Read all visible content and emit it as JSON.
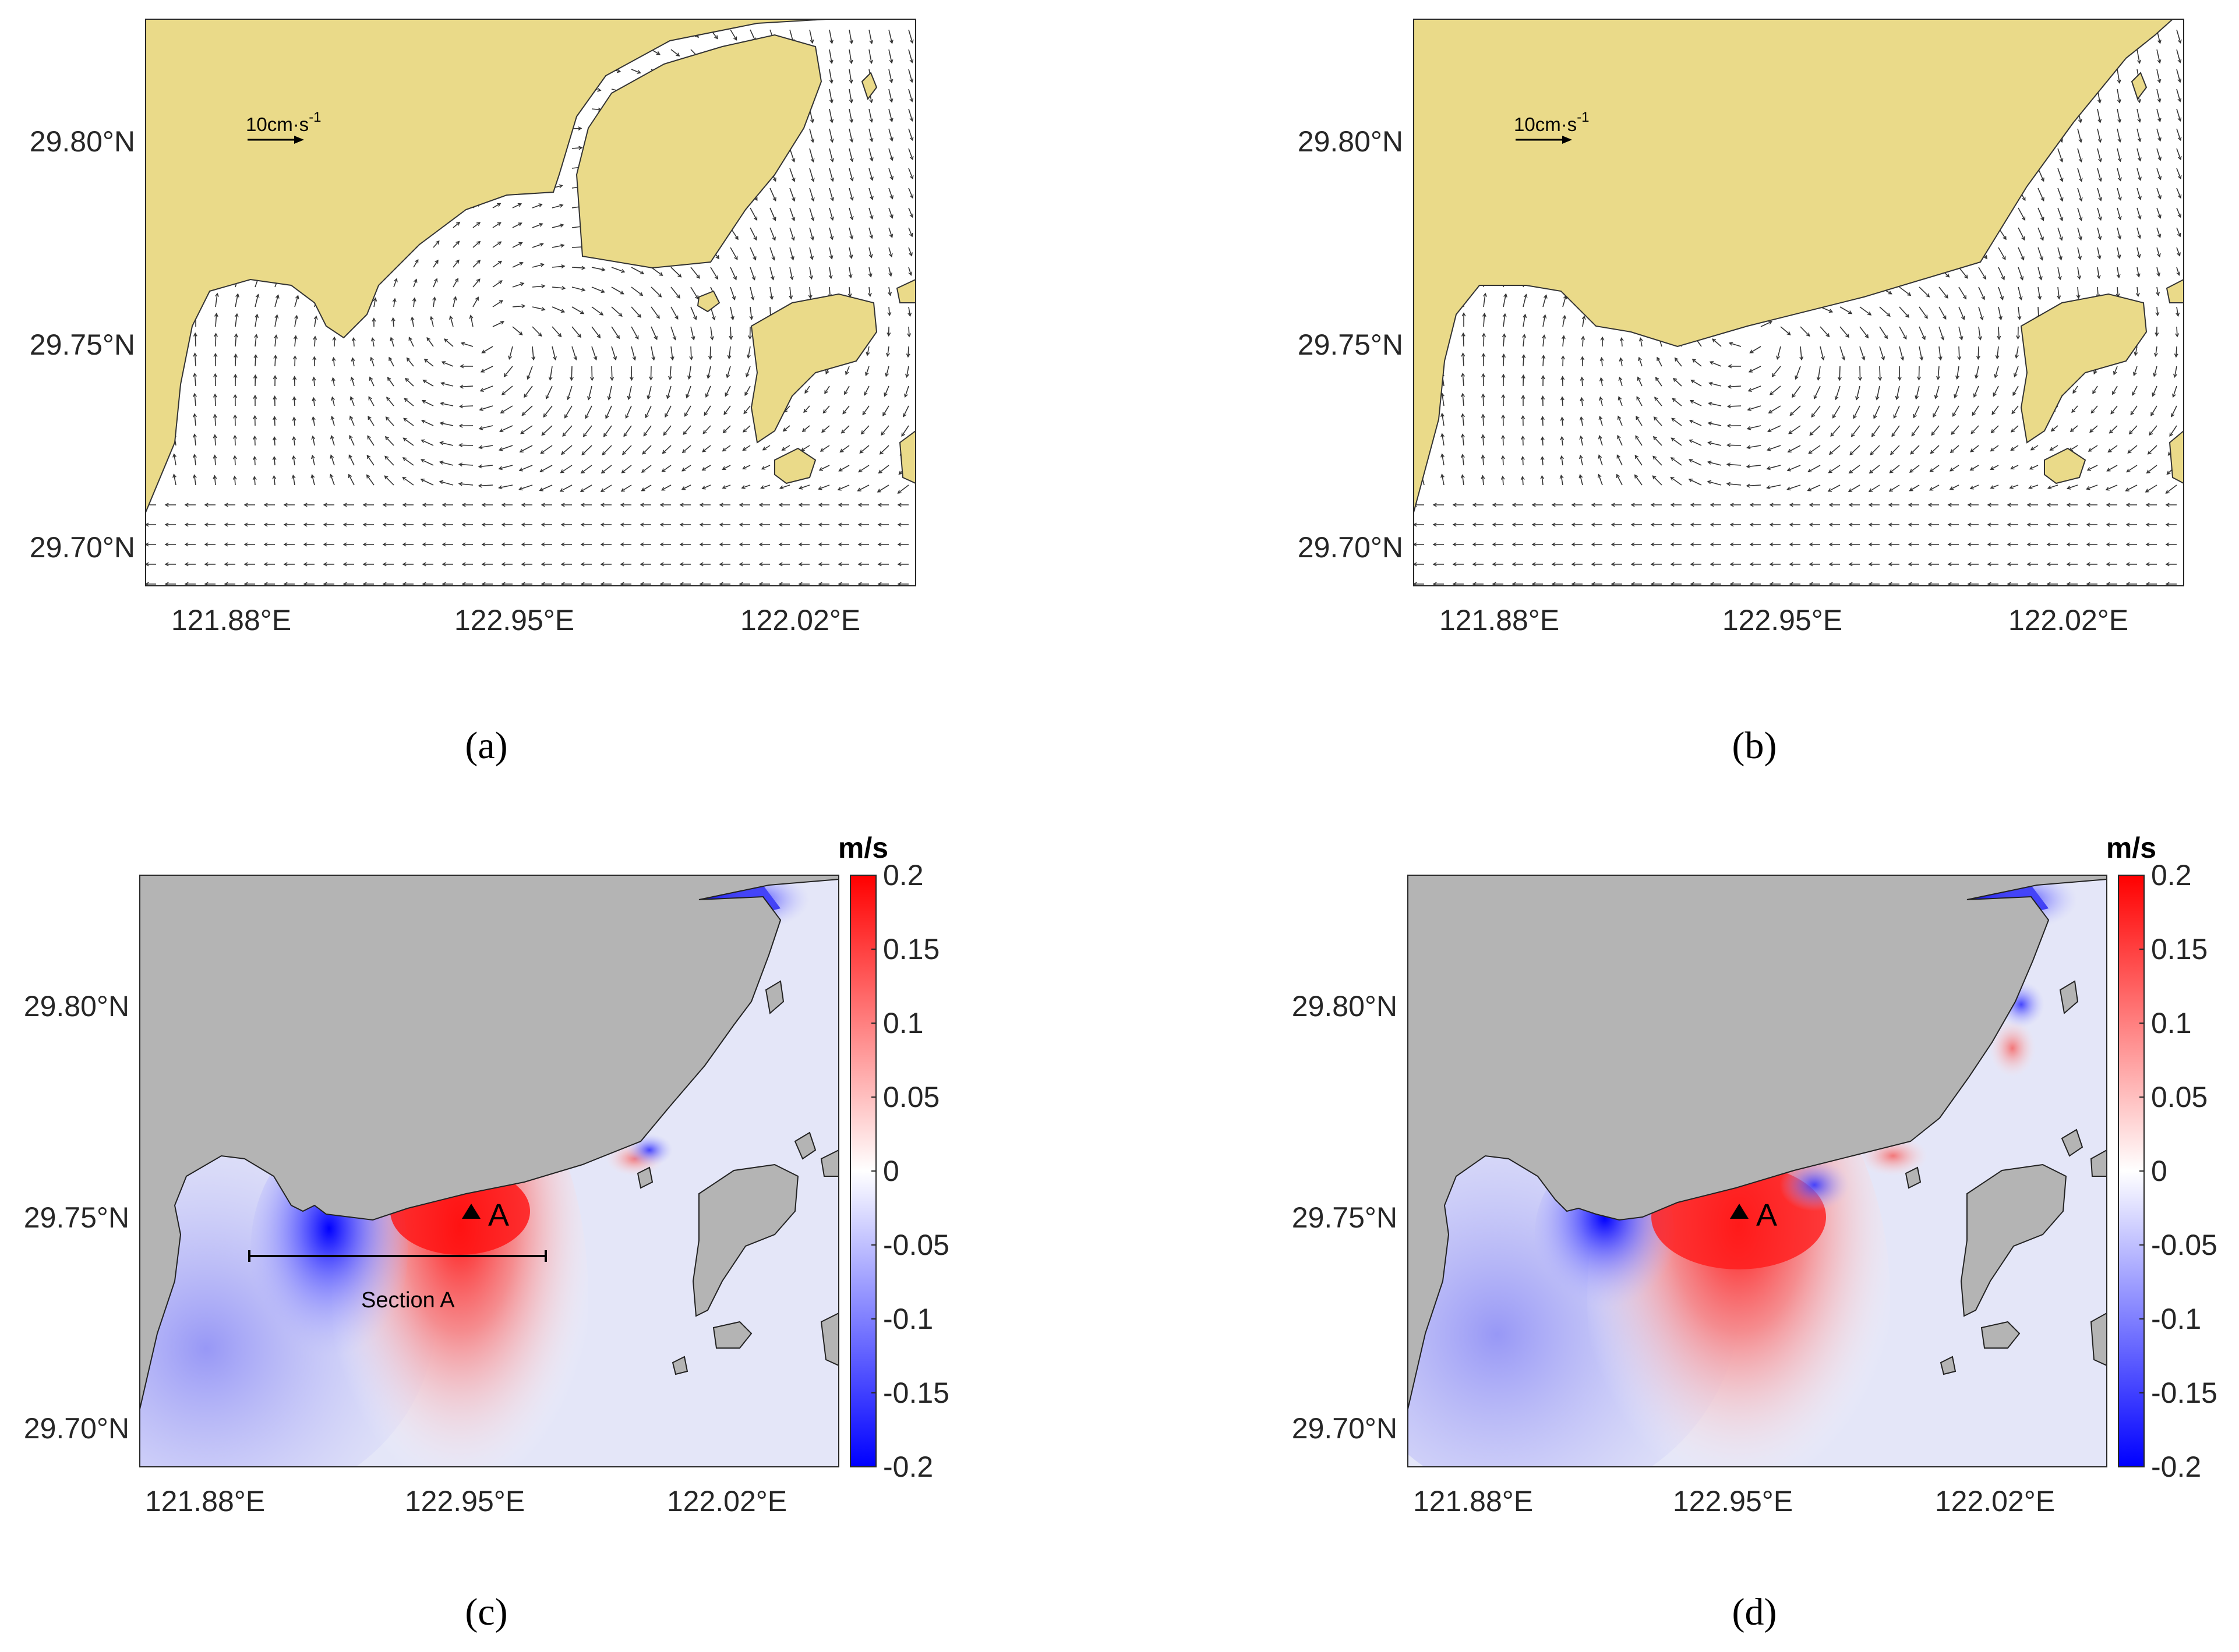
{
  "figure": {
    "panels": [
      {
        "id": "a",
        "caption": "(a)",
        "kind": "vector",
        "scale_label": "10cm·s",
        "scale_exp": "-1",
        "lat_ticks": [
          "29.80°N",
          "29.75°N",
          "29.70°N"
        ],
        "lon_ticks": [
          "121.88°E",
          "122.95°E",
          "122.02°E"
        ]
      },
      {
        "id": "b",
        "caption": "(b)",
        "kind": "vector",
        "scale_label": "10cm·s",
        "scale_exp": "-1",
        "lat_ticks": [
          "29.80°N",
          "29.75°N",
          "29.70°N"
        ],
        "lon_ticks": [
          "121.88°E",
          "122.95°E",
          "122.02°E"
        ]
      },
      {
        "id": "c",
        "caption": "(c)",
        "kind": "field",
        "marker_label": "A",
        "section_label": "Section A",
        "lat_ticks": [
          "29.80°N",
          "29.75°N",
          "29.70°N"
        ],
        "lon_ticks": [
          "121.88°E",
          "122.95°E",
          "122.02°E"
        ]
      },
      {
        "id": "d",
        "caption": "(d)",
        "kind": "field",
        "marker_label": "A",
        "lat_ticks": [
          "29.80°N",
          "29.75°N",
          "29.70°N"
        ],
        "lon_ticks": [
          "121.88°E",
          "122.95°E",
          "122.02°E"
        ]
      }
    ],
    "colorbar": {
      "title": "m/s",
      "ticks": [
        "0.2",
        "0.15",
        "0.1",
        "0.05",
        "0",
        "-0.05",
        "-0.1",
        "-0.15",
        "-0.2"
      ],
      "range": [
        -0.2,
        0.2
      ],
      "colormap": [
        "#0000ff",
        "#ffffff",
        "#ff0000"
      ]
    },
    "colors": {
      "land_vector": "#eada89",
      "land_field": "#b4b4b4",
      "ocean_base": "#e4e6f8"
    }
  }
}
